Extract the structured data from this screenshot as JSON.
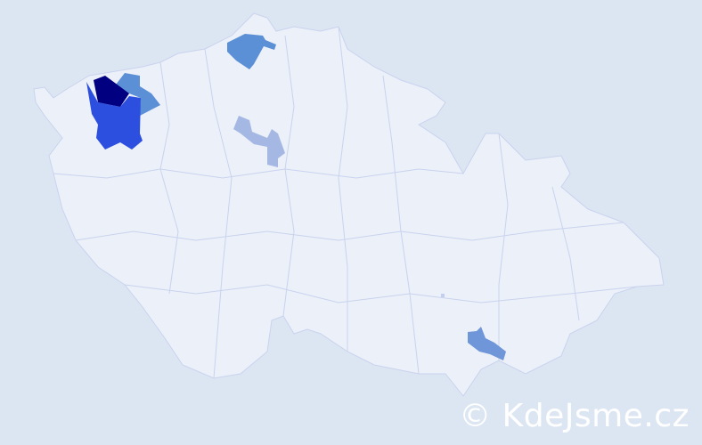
{
  "watermark": "© KdeJsme.cz",
  "colors": {
    "background": "#dce6f2",
    "country_fill": "#ecf0f9",
    "border": "#c9d3ee",
    "level_highest": "#000080",
    "level_high": "#2c4fdf",
    "level_mid": "#5b8fd6",
    "level_mid2": "#6f96d8",
    "level_low": "#a5b8e3"
  },
  "regions": [
    {
      "name": "northwest-district-darkest",
      "level": "level_highest"
    },
    {
      "name": "northwest-district-high",
      "level": "level_high"
    },
    {
      "name": "northwest-district-mid",
      "level": "level_mid"
    },
    {
      "name": "north-district-mid",
      "level": "level_mid"
    },
    {
      "name": "central-district-low",
      "level": "level_low"
    },
    {
      "name": "south-moravia-district-mid",
      "level": "level_mid2"
    }
  ]
}
